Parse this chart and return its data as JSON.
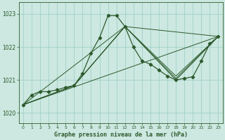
{
  "background_color": "#cce8e0",
  "grid_color": "#99ccc4",
  "line_color": "#2d5a2d",
  "title": "Graphe pression niveau de la mer (hPa)",
  "xlim": [
    -0.5,
    23.5
  ],
  "ylim": [
    1019.7,
    1023.35
  ],
  "yticks": [
    1020,
    1021,
    1022,
    1023
  ],
  "xticks": [
    0,
    1,
    2,
    3,
    4,
    5,
    6,
    7,
    8,
    9,
    10,
    11,
    12,
    13,
    14,
    15,
    16,
    17,
    18,
    19,
    20,
    21,
    22,
    23
  ],
  "main_x": [
    0,
    1,
    2,
    3,
    4,
    5,
    6,
    7,
    8,
    9,
    10,
    11,
    12,
    13,
    14,
    15,
    16,
    17,
    18,
    19,
    20,
    21,
    22,
    23
  ],
  "main_y": [
    1020.25,
    1020.55,
    1020.65,
    1020.65,
    1020.7,
    1020.78,
    1020.83,
    1021.2,
    1021.82,
    1022.28,
    1022.95,
    1022.95,
    1022.62,
    1022.0,
    1021.58,
    1021.48,
    1021.3,
    1021.12,
    1021.0,
    1021.05,
    1021.1,
    1021.58,
    1022.1,
    1022.32
  ],
  "straight_lines": [
    {
      "x": [
        0,
        23
      ],
      "y": [
        1020.25,
        1022.32
      ]
    },
    {
      "x": [
        0,
        6,
        12,
        18,
        23
      ],
      "y": [
        1020.25,
        1020.83,
        1022.62,
        1021.12,
        1022.32
      ]
    },
    {
      "x": [
        0,
        6,
        12,
        18,
        23
      ],
      "y": [
        1020.25,
        1020.83,
        1022.62,
        1021.0,
        1022.32
      ]
    },
    {
      "x": [
        0,
        6,
        12,
        18,
        23
      ],
      "y": [
        1020.25,
        1020.83,
        1022.62,
        1021.05,
        1022.32
      ]
    },
    {
      "x": [
        0,
        12,
        23
      ],
      "y": [
        1020.25,
        1022.62,
        1022.32
      ]
    }
  ]
}
